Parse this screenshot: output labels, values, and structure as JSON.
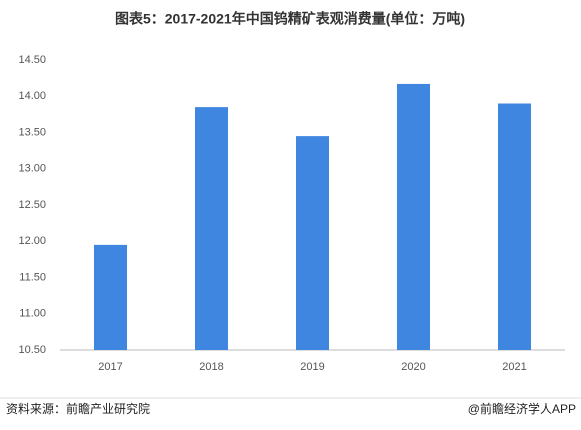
{
  "chart_data": {
    "type": "bar",
    "title": "图表5：2017-2021年中国钨精矿表观消费量(单位：万吨)",
    "categories": [
      "2017",
      "2018",
      "2019",
      "2020",
      "2021"
    ],
    "values": [
      11.95,
      13.85,
      13.45,
      14.17,
      13.9
    ],
    "color": "#3f86e0",
    "ylim": [
      10.5,
      14.5
    ],
    "yticks": [
      {
        "value": 10.5,
        "label": "10.50"
      },
      {
        "value": 11,
        "label": "11.00"
      },
      {
        "value": 11.5,
        "label": "11.50"
      },
      {
        "value": 12,
        "label": "12.00"
      },
      {
        "value": 12.5,
        "label": "12.50"
      },
      {
        "value": 13,
        "label": "13.00"
      },
      {
        "value": 13.5,
        "label": "13.50"
      },
      {
        "value": 14,
        "label": "14.00"
      },
      {
        "value": 14.5,
        "label": "14.50"
      }
    ],
    "grid": false,
    "source": "资料来源：前瞻产业研究院",
    "credit": "@前瞻经济学人APP"
  }
}
